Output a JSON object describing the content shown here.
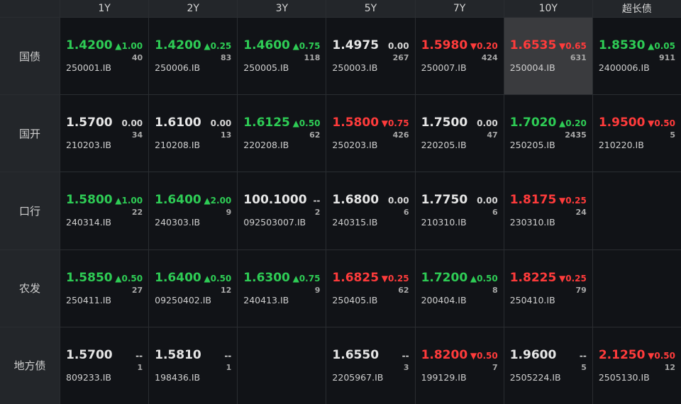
{
  "columns": [
    "1Y",
    "2Y",
    "3Y",
    "5Y",
    "7Y",
    "10Y",
    "超长债"
  ],
  "rows": [
    {
      "label": "国债",
      "cells": [
        {
          "price": "1.4200",
          "dir": "up",
          "change": "▲1.00",
          "volume": "40",
          "code": "250001.IB"
        },
        {
          "price": "1.4200",
          "dir": "up",
          "change": "▲0.25",
          "volume": "83",
          "code": "250006.IB"
        },
        {
          "price": "1.4600",
          "dir": "up",
          "change": "▲0.75",
          "volume": "118",
          "code": "250005.IB"
        },
        {
          "price": "1.4975",
          "dir": "flat",
          "change": "0.00",
          "volume": "267",
          "code": "250003.IB"
        },
        {
          "price": "1.5980",
          "dir": "down",
          "change": "▼0.20",
          "volume": "424",
          "code": "250007.IB"
        },
        {
          "price": "1.6535",
          "dir": "down",
          "change": "▼0.65",
          "volume": "631",
          "code": "250004.IB",
          "highlighted": true
        },
        {
          "price": "1.8530",
          "dir": "up",
          "change": "▲0.05",
          "volume": "911",
          "code": "2400006.IB"
        }
      ]
    },
    {
      "label": "国开",
      "cells": [
        {
          "price": "1.5700",
          "dir": "flat",
          "change": "0.00",
          "volume": "34",
          "code": "210203.IB"
        },
        {
          "price": "1.6100",
          "dir": "flat",
          "change": "0.00",
          "volume": "13",
          "code": "210208.IB"
        },
        {
          "price": "1.6125",
          "dir": "up",
          "change": "▲0.50",
          "volume": "62",
          "code": "220208.IB"
        },
        {
          "price": "1.5800",
          "dir": "down",
          "change": "▼0.75",
          "volume": "426",
          "code": "250203.IB"
        },
        {
          "price": "1.7500",
          "dir": "flat",
          "change": "0.00",
          "volume": "47",
          "code": "220205.IB"
        },
        {
          "price": "1.7020",
          "dir": "up",
          "change": "▲0.20",
          "volume": "2435",
          "code": "250205.IB"
        },
        {
          "price": "1.9500",
          "dir": "down",
          "change": "▼0.50",
          "volume": "5",
          "code": "210220.IB"
        }
      ]
    },
    {
      "label": "口行",
      "cells": [
        {
          "price": "1.5800",
          "dir": "up",
          "change": "▲1.00",
          "volume": "22",
          "code": "240314.IB"
        },
        {
          "price": "1.6400",
          "dir": "up",
          "change": "▲2.00",
          "volume": "9",
          "code": "240303.IB"
        },
        {
          "price": "100.1000",
          "dir": "flat",
          "change": "--",
          "volume": "2",
          "code": "092503007.IB"
        },
        {
          "price": "1.6800",
          "dir": "flat",
          "change": "0.00",
          "volume": "6",
          "code": "240315.IB"
        },
        {
          "price": "1.7750",
          "dir": "flat",
          "change": "0.00",
          "volume": "6",
          "code": "210310.IB"
        },
        {
          "price": "1.8175",
          "dir": "down",
          "change": "▼0.25",
          "volume": "24",
          "code": "230310.IB"
        },
        null
      ]
    },
    {
      "label": "农发",
      "cells": [
        {
          "price": "1.5850",
          "dir": "up",
          "change": "▲0.50",
          "volume": "27",
          "code": "250411.IB"
        },
        {
          "price": "1.6400",
          "dir": "up",
          "change": "▲0.50",
          "volume": "12",
          "code": "09250402.IB"
        },
        {
          "price": "1.6300",
          "dir": "up",
          "change": "▲0.75",
          "volume": "9",
          "code": "240413.IB"
        },
        {
          "price": "1.6825",
          "dir": "down",
          "change": "▼0.25",
          "volume": "62",
          "code": "250405.IB"
        },
        {
          "price": "1.7200",
          "dir": "up",
          "change": "▲0.50",
          "volume": "8",
          "code": "200404.IB"
        },
        {
          "price": "1.8225",
          "dir": "down",
          "change": "▼0.25",
          "volume": "79",
          "code": "250410.IB"
        },
        null
      ]
    },
    {
      "label": "地方债",
      "cells": [
        {
          "price": "1.5700",
          "dir": "flat",
          "change": "--",
          "volume": "1",
          "code": "809233.IB"
        },
        {
          "price": "1.5810",
          "dir": "flat",
          "change": "--",
          "volume": "1",
          "code": "198436.IB"
        },
        null,
        {
          "price": "1.6550",
          "dir": "flat",
          "change": "--",
          "volume": "3",
          "code": "2205967.IB"
        },
        {
          "price": "1.8200",
          "dir": "down",
          "change": "▼0.50",
          "volume": "7",
          "code": "199129.IB"
        },
        {
          "price": "1.9600",
          "dir": "flat",
          "change": "--",
          "volume": "5",
          "code": "2505224.IB"
        },
        {
          "price": "2.1250",
          "dir": "down",
          "change": "▼0.50",
          "volume": "12",
          "code": "2505130.IB"
        }
      ]
    }
  ],
  "colors": {
    "up": "#2ecc55",
    "down": "#ff3b3b",
    "flat": "#e6e6e6",
    "highlight_bg": "#3a3b3e"
  }
}
